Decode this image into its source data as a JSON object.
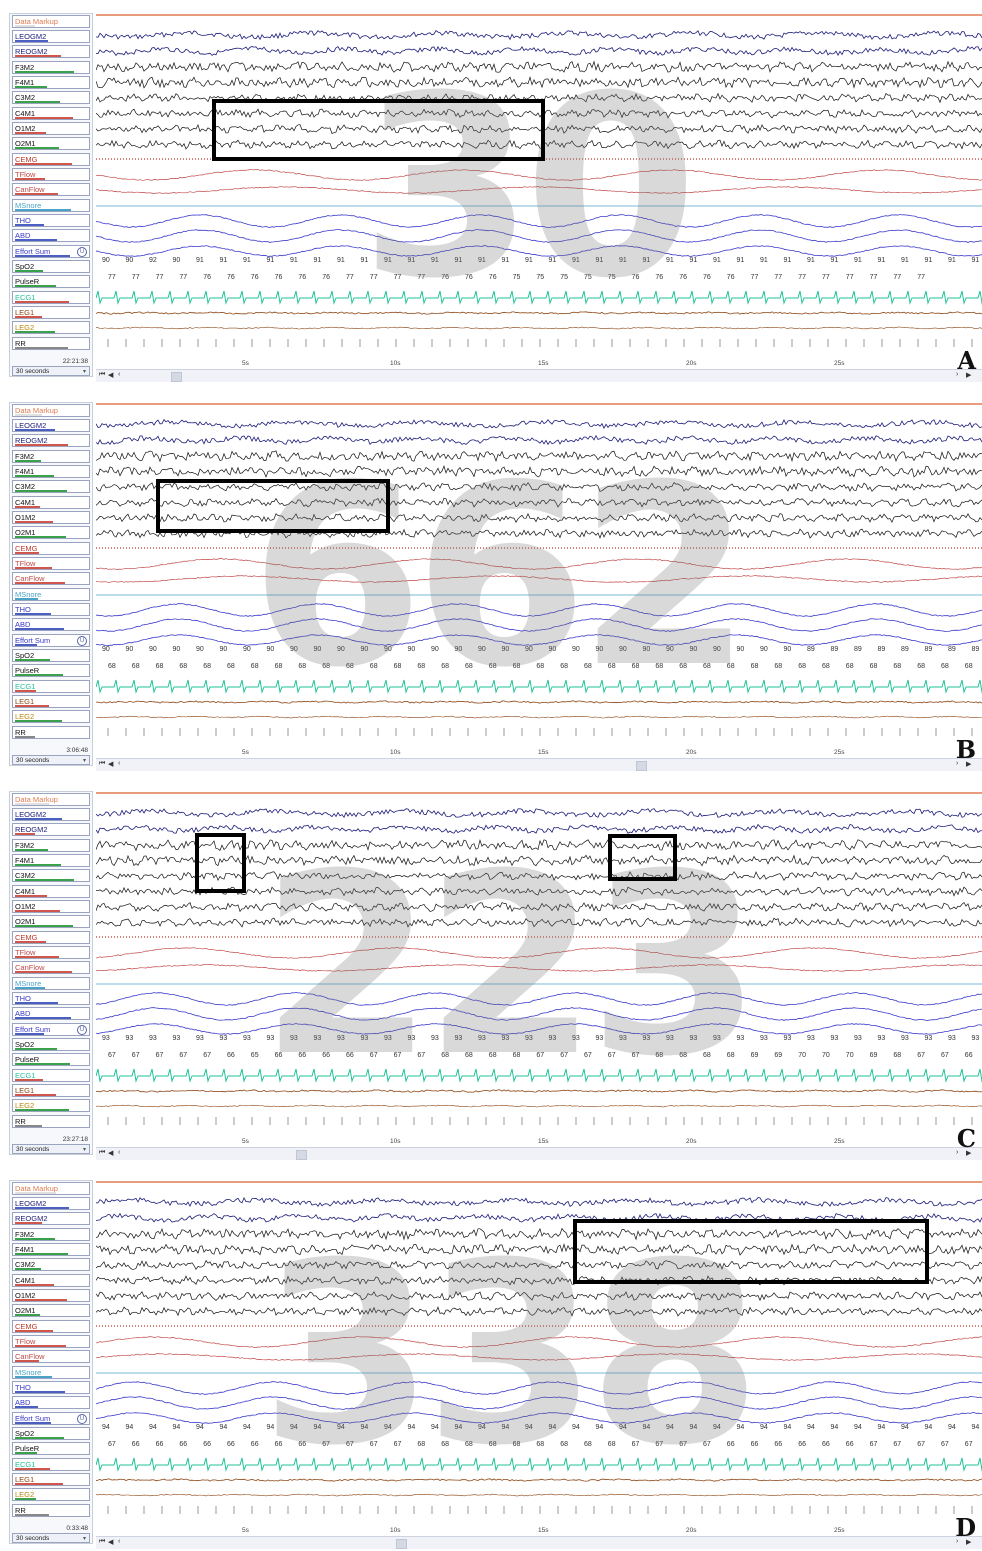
{
  "channels": [
    "Data Markup",
    "LEOGM2",
    "REOGM2",
    "F3M2",
    "F4M1",
    "C3M2",
    "C4M1",
    "O1M2",
    "O2M1",
    "CEMG",
    "TFlow",
    "CanFlow",
    "MSnore",
    "THO",
    "ABD",
    "Effort Sum",
    "SpO2",
    "PulseR",
    "ECG1",
    "LEG1",
    "LEG2",
    "RR"
  ],
  "channel_colors": {
    "Data Markup": "#e07b53",
    "LEOGM2": "#1b1b7a",
    "REOGM2": "#1b1b7a",
    "EEG": "#111111",
    "CEMG": "#c0392b",
    "TFlow": "#c24a4a",
    "CanFlow": "#c24a4a",
    "MSnore": "#4aa3c7",
    "THO": "#3a3acb",
    "ABD": "#3a3acb",
    "ECG1": "#22c39a",
    "LEG1": "#8b4513",
    "LEG2": "#8b4513",
    "RR": "#333333"
  },
  "time_labels": [
    "5s",
    "10s",
    "15s",
    "20s",
    "25s"
  ],
  "duration": "30 seconds",
  "panels": [
    {
      "id": "A",
      "letter": "A",
      "watermark": "30",
      "clock": "22:21:38",
      "spo2": [
        "90",
        "90",
        "92",
        "90",
        "91",
        "91",
        "91",
        "91",
        "91",
        "91",
        "91",
        "91",
        "91",
        "91",
        "91",
        "91",
        "91",
        "91",
        "91",
        "91",
        "91",
        "91",
        "91",
        "91",
        "91",
        "91",
        "91",
        "91",
        "91",
        "91",
        "91",
        "91",
        "91",
        "91",
        "91",
        "91",
        "91",
        "91"
      ],
      "pulse": [
        "77",
        "77",
        "77",
        "77",
        "76",
        "76",
        "76",
        "76",
        "76",
        "76",
        "77",
        "77",
        "77",
        "77",
        "76",
        "76",
        "76",
        "75",
        "75",
        "75",
        "75",
        "75",
        "76",
        "76",
        "76",
        "76",
        "76",
        "77",
        "77",
        "77",
        "77",
        "77",
        "77",
        "77",
        "77"
      ]
    },
    {
      "id": "B",
      "letter": "B",
      "watermark": "662",
      "clock": "3:06:48",
      "spo2": [
        "90",
        "90",
        "90",
        "90",
        "90",
        "90",
        "90",
        "90",
        "90",
        "90",
        "90",
        "90",
        "90",
        "90",
        "90",
        "90",
        "90",
        "90",
        "90",
        "90",
        "90",
        "90",
        "90",
        "90",
        "90",
        "90",
        "90",
        "90",
        "90",
        "90",
        "89",
        "89",
        "89",
        "89",
        "89",
        "89",
        "89",
        "89"
      ],
      "pulse": [
        "68",
        "68",
        "68",
        "68",
        "68",
        "68",
        "68",
        "68",
        "68",
        "68",
        "68",
        "68",
        "68",
        "68",
        "68",
        "68",
        "68",
        "68",
        "68",
        "68",
        "68",
        "68",
        "68",
        "68",
        "68",
        "68",
        "68",
        "68",
        "68",
        "68",
        "68",
        "68",
        "68",
        "68",
        "68",
        "68",
        "68"
      ]
    },
    {
      "id": "C",
      "letter": "C",
      "watermark": "223",
      "clock": "23:27:18",
      "spo2": [
        "93",
        "93",
        "93",
        "93",
        "93",
        "93",
        "93",
        "93",
        "93",
        "93",
        "93",
        "93",
        "93",
        "93",
        "93",
        "93",
        "93",
        "93",
        "93",
        "93",
        "93",
        "93",
        "93",
        "93",
        "93",
        "93",
        "93",
        "93",
        "93",
        "93",
        "93",
        "93",
        "93",
        "93",
        "93",
        "93",
        "93",
        "93"
      ],
      "pulse": [
        "67",
        "67",
        "67",
        "67",
        "67",
        "66",
        "65",
        "66",
        "66",
        "66",
        "66",
        "67",
        "67",
        "67",
        "68",
        "68",
        "68",
        "68",
        "67",
        "67",
        "67",
        "67",
        "67",
        "68",
        "68",
        "68",
        "68",
        "69",
        "69",
        "70",
        "70",
        "70",
        "69",
        "68",
        "67",
        "67",
        "66"
      ]
    },
    {
      "id": "D",
      "letter": "D",
      "watermark": "338",
      "clock": "0:33:48",
      "spo2": [
        "94",
        "94",
        "94",
        "94",
        "94",
        "94",
        "94",
        "94",
        "94",
        "94",
        "94",
        "94",
        "94",
        "94",
        "94",
        "94",
        "94",
        "94",
        "94",
        "94",
        "94",
        "94",
        "94",
        "94",
        "94",
        "94",
        "94",
        "94",
        "94",
        "94",
        "94",
        "94",
        "94",
        "94",
        "94",
        "94",
        "94",
        "94"
      ],
      "pulse": [
        "67",
        "66",
        "66",
        "66",
        "66",
        "66",
        "66",
        "66",
        "66",
        "67",
        "67",
        "67",
        "67",
        "68",
        "68",
        "68",
        "68",
        "68",
        "68",
        "68",
        "68",
        "68",
        "67",
        "67",
        "67",
        "67",
        "66",
        "66",
        "66",
        "66",
        "66",
        "66",
        "67",
        "67",
        "67",
        "67",
        "67"
      ]
    }
  ]
}
